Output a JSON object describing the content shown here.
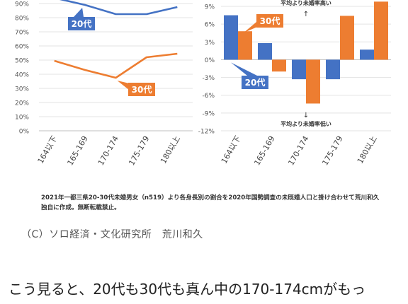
{
  "chart_data": [
    {
      "type": "line",
      "categories": [
        "164以下",
        "165-169",
        "170-174",
        "175-179",
        "180以上"
      ],
      "ylim": [
        0,
        90
      ],
      "yticks": [
        "0%",
        "10%",
        "20%",
        "30%",
        "40%",
        "50%",
        "60%",
        "70%",
        "80%",
        "90%"
      ],
      "series": [
        {
          "name": "20代",
          "values": [
            94,
            89,
            82.5,
            82.5,
            87.5
          ],
          "color": "#4472C4"
        },
        {
          "name": "30代",
          "values": [
            49.5,
            43,
            37.5,
            52,
            54.5
          ],
          "color": "#ED7D31"
        }
      ]
    },
    {
      "type": "bar",
      "categories": [
        "164以下",
        "165-169",
        "170-174",
        "175-179",
        "180以上"
      ],
      "ylim": [
        -12,
        9
      ],
      "yticks": [
        "-12%",
        "-9%",
        "-6%",
        "-3%",
        "0%",
        "3%",
        "6%",
        "9%"
      ],
      "series": [
        {
          "name": "20代",
          "values": [
            7.5,
            2.8,
            -3.3,
            -3.3,
            1.7
          ],
          "color": "#4472C4"
        },
        {
          "name": "30代",
          "values": [
            4.8,
            -2.0,
            -7.4,
            7.4,
            9.8
          ],
          "color": "#ED7D31"
        }
      ],
      "annotations": {
        "top": "平均より未婚率高い",
        "top_arrow": "↑",
        "bottom_arrow": "↓",
        "bottom": "平均より未婚率低い"
      }
    }
  ],
  "caption": "2021年一都三県20-30代未婚男女（n519）より各身長別の割合を2020年国勢調査の未既婚人口と掛け合わせて荒川和久独自に作成。無断転載禁止。",
  "credit": "（C）ソロ経済・文化研究所　荒川和久",
  "body_text": "こう見ると、20代も30代も真ん中の170-174cmがもっ"
}
